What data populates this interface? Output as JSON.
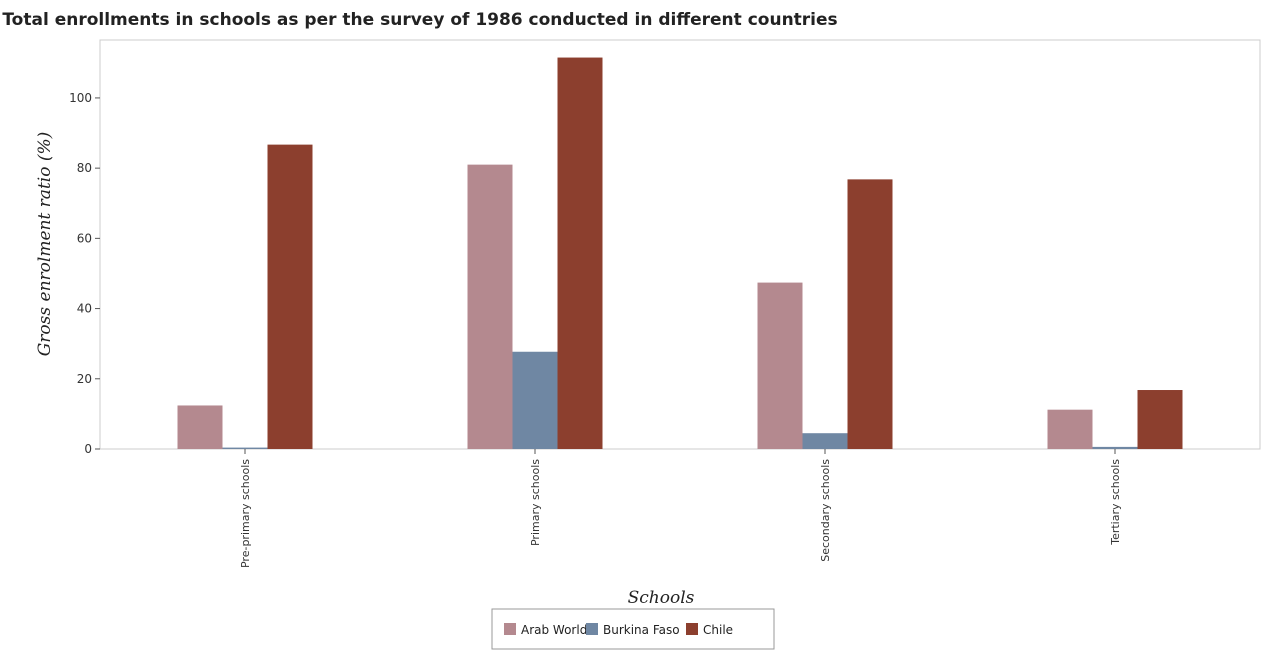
{
  "chart_data": {
    "type": "bar",
    "title": "Total enrollments in schools as per the survey of 1986 conducted in different countries",
    "xlabel": "Schools",
    "ylabel": "Gross enrolment ratio (%)",
    "categories": [
      "Pre-primary schools",
      "Primary schools",
      "Secondary schools",
      "Tertiary schools"
    ],
    "series": [
      {
        "name": "Arab World",
        "color": "#b4898f",
        "values": [
          12.4,
          81.0,
          47.4,
          11.2
        ]
      },
      {
        "name": "Burkina Faso",
        "color": "#6f87a3",
        "values": [
          0.4,
          27.7,
          4.5,
          0.6
        ]
      },
      {
        "name": "Chile",
        "color": "#8c3f2e",
        "values": [
          86.7,
          111.5,
          76.8,
          16.8
        ]
      }
    ],
    "ylim": [
      0,
      116.5
    ],
    "yticks": [
      0,
      20,
      40,
      60,
      80,
      100
    ],
    "grid": false,
    "legend_position": "bottom-center"
  }
}
